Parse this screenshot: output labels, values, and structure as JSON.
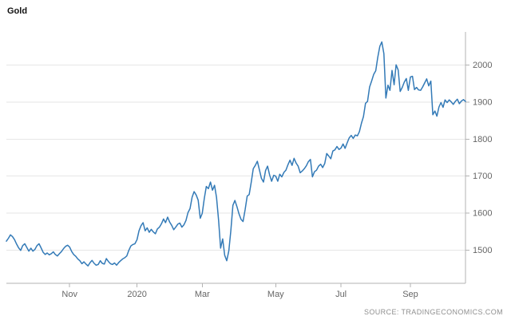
{
  "title": "Gold",
  "source": "SOURCE: TRADINGECONOMICS.COM",
  "chart_data": {
    "type": "line",
    "title": "Gold",
    "xlabel": "",
    "ylabel": "",
    "legend": "none",
    "grid": "horizontal",
    "axis_position": "right",
    "line_color": "#337ab7",
    "ylim": [
      1410,
      2090
    ],
    "yticks": [
      1500,
      1600,
      1700,
      1800,
      1900,
      2000
    ],
    "xticks": [
      {
        "label": "Nov",
        "index": 31
      },
      {
        "label": "2020",
        "index": 64
      },
      {
        "label": "Mar",
        "index": 96
      },
      {
        "label": "May",
        "index": 132
      },
      {
        "label": "Jul",
        "index": 164
      },
      {
        "label": "Sep",
        "index": 198
      }
    ],
    "values": [
      1524,
      1532,
      1541,
      1536,
      1528,
      1516,
      1506,
      1499,
      1512,
      1517,
      1507,
      1497,
      1505,
      1497,
      1502,
      1512,
      1517,
      1506,
      1494,
      1488,
      1492,
      1487,
      1490,
      1495,
      1488,
      1484,
      1490,
      1496,
      1504,
      1510,
      1513,
      1508,
      1496,
      1488,
      1483,
      1476,
      1471,
      1463,
      1468,
      1462,
      1457,
      1466,
      1472,
      1464,
      1459,
      1461,
      1471,
      1464,
      1462,
      1477,
      1469,
      1463,
      1461,
      1465,
      1459,
      1466,
      1471,
      1476,
      1479,
      1484,
      1499,
      1511,
      1515,
      1517,
      1528,
      1552,
      1566,
      1574,
      1552,
      1560,
      1548,
      1556,
      1549,
      1544,
      1557,
      1562,
      1571,
      1584,
      1574,
      1589,
      1576,
      1567,
      1555,
      1562,
      1570,
      1573,
      1562,
      1568,
      1580,
      1601,
      1612,
      1643,
      1658,
      1649,
      1635,
      1586,
      1599,
      1640,
      1672,
      1666,
      1684,
      1662,
      1675,
      1642,
      1580,
      1505,
      1530,
      1486,
      1471,
      1498,
      1552,
      1621,
      1634,
      1617,
      1598,
      1583,
      1577,
      1609,
      1646,
      1650,
      1684,
      1720,
      1729,
      1740,
      1717,
      1694,
      1684,
      1715,
      1727,
      1703,
      1686,
      1702,
      1700,
      1686,
      1705,
      1698,
      1710,
      1716,
      1731,
      1743,
      1729,
      1748,
      1735,
      1727,
      1709,
      1714,
      1720,
      1728,
      1739,
      1745,
      1698,
      1712,
      1716,
      1727,
      1732,
      1723,
      1734,
      1761,
      1754,
      1747,
      1768,
      1771,
      1780,
      1772,
      1776,
      1787,
      1775,
      1790,
      1803,
      1810,
      1802,
      1811,
      1809,
      1820,
      1843,
      1861,
      1897,
      1902,
      1941,
      1957,
      1975,
      1985,
      2021,
      2051,
      2063,
      2031,
      1911,
      1946,
      1932,
      1986,
      1947,
      2001,
      1987,
      1929,
      1940,
      1954,
      1964,
      1932,
      1968,
      1970,
      1934,
      1940,
      1933,
      1932,
      1941,
      1952,
      1963,
      1944,
      1957,
      1866,
      1876,
      1862,
      1887,
      1899,
      1886,
      1906,
      1899,
      1906,
      1901,
      1894,
      1902,
      1908,
      1896,
      1903,
      1907,
      1902
    ]
  }
}
